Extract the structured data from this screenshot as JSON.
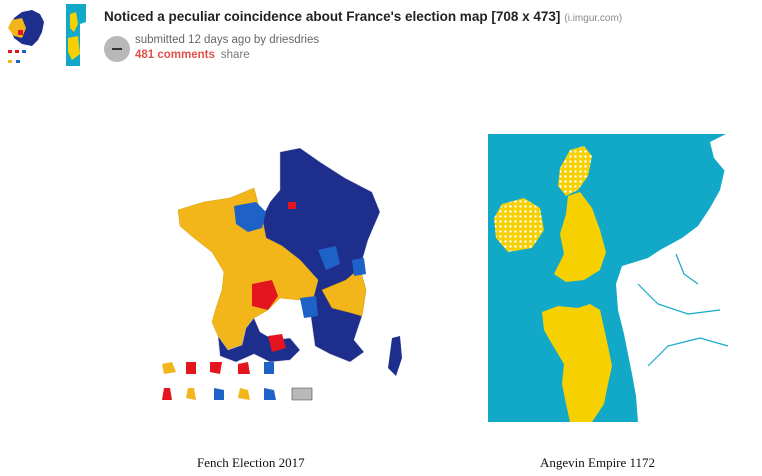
{
  "post": {
    "title": "Noticed a peculiar coincidence about France's election map [708 x 473]",
    "domain": "(i.imgur.com)",
    "submitted_prefix": "submitted 12 days ago by",
    "username": "driesdries",
    "comments_label": "481 comments",
    "share_label": "share"
  },
  "captions": {
    "left": "Fench Election 2017",
    "right": "Angevin Empire 1172"
  },
  "colors": {
    "macron_yellow": "#f2b51a",
    "lepen_navy": "#1e2e8c",
    "blue": "#1f62c7",
    "red": "#e5151f",
    "sea": "#12a9c8",
    "angevin_yellow": "#f6d000"
  }
}
